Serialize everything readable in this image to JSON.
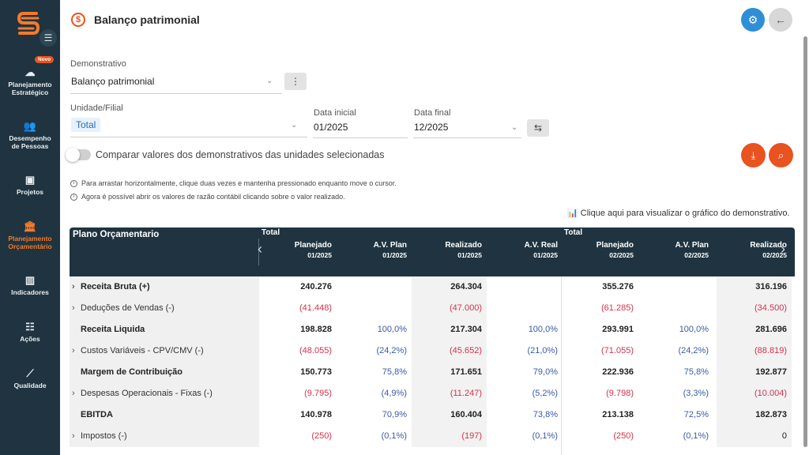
{
  "sidebar": {
    "badge": "Novo",
    "items": [
      {
        "label_1": "Planejamento",
        "label_2": "Estratégico",
        "icon": "brain-icon"
      },
      {
        "label_1": "Desempenho",
        "label_2": "de Pessoas",
        "icon": "people-icon"
      },
      {
        "label_1": "Projetos",
        "label_2": "",
        "icon": "briefcase-icon"
      },
      {
        "label_1": "Planejamento",
        "label_2": "Orçamentário",
        "icon": "bank-icon"
      },
      {
        "label_1": "Indicadores",
        "label_2": "",
        "icon": "bar-chart-icon"
      },
      {
        "label_1": "Ações",
        "label_2": "",
        "icon": "checklist-icon"
      },
      {
        "label_1": "Qualidade",
        "label_2": "",
        "icon": "line-chart-icon"
      }
    ],
    "active_color": "#f47a2a"
  },
  "header": {
    "title": "Balanço patrimonial",
    "icon": "dollar-icon"
  },
  "form": {
    "demonstrativo_label": "Demonstrativo",
    "demonstrativo_value": "Balanço patrimonial",
    "unidade_label": "Unidade/Filial",
    "unidade_chip": "Total",
    "data_inicial_label": "Data inicial",
    "data_inicial_value": "01/2025",
    "data_final_label": "Data final",
    "data_final_value": "12/2025",
    "toggle_label": "Comparar valores dos demonstrativos das unidades selecionadas",
    "info_1": "Para arrastar horizontalmente, clique duas vezes e mantenha pressionado enquanto move o cursor.",
    "info_2": "Agora é possível abrir os valores de razão contábil clicando sobre o valor realizado.",
    "chart_link": "Clique aqui para visualizar o gráfico do demonstrativo."
  },
  "table": {
    "title": "Plano Orçamentario",
    "group_1": "Total",
    "group_2": "Total",
    "columns": [
      {
        "name": "Planejado",
        "period": "01/2025"
      },
      {
        "name": "A.V. Plan",
        "period": "01/2025"
      },
      {
        "name": "Realizado",
        "period": "01/2025"
      },
      {
        "name": "A.V. Real",
        "period": "01/2025"
      },
      {
        "name": "Planejado",
        "period": "02/2025"
      },
      {
        "name": "A.V. Plan",
        "period": "02/2025"
      },
      {
        "name": "Realizado",
        "period": "02/2025"
      }
    ],
    "rows": [
      {
        "label": "Receita Bruta (+)",
        "cells": [
          "240.276",
          "",
          "264.304",
          "",
          "355.276",
          "",
          "316.196"
        ]
      },
      {
        "label": "Deduções de Vendas (-)",
        "cells": [
          "(41.448)",
          "",
          "(47.000)",
          "",
          "(61.285)",
          "",
          "(34.500)"
        ]
      },
      {
        "label": "Receita Liquida",
        "cells": [
          "198.828",
          "100,0%",
          "217.304",
          "100,0%",
          "293.991",
          "100,0%",
          "281.696"
        ]
      },
      {
        "label": "Custos Variáveis - CPV/CMV (-)",
        "cells": [
          "(48.055)",
          "(24,2%)",
          "(45.652)",
          "(21,0%)",
          "(71.055)",
          "(24,2%)",
          "(88.819)"
        ]
      },
      {
        "label": "Margem de Contribuição",
        "cells": [
          "150.773",
          "75,8%",
          "171.651",
          "79,0%",
          "222.936",
          "75,8%",
          "192.877"
        ]
      },
      {
        "label": "Despesas Operacionais - Fixas (-)",
        "cells": [
          "(9.795)",
          "(4,9%)",
          "(11.247)",
          "(5,2%)",
          "(9.798)",
          "(3,3%)",
          "(10.004)"
        ]
      },
      {
        "label": "EBITDA",
        "cells": [
          "140.978",
          "70,9%",
          "160.404",
          "73,8%",
          "213.138",
          "72,5%",
          "182.873"
        ]
      },
      {
        "label": "Impostos (-)",
        "cells": [
          "(250)",
          "(0,1%)",
          "(197)",
          "(0,1%)",
          "(250)",
          "(0,1%)",
          "0"
        ]
      }
    ]
  }
}
